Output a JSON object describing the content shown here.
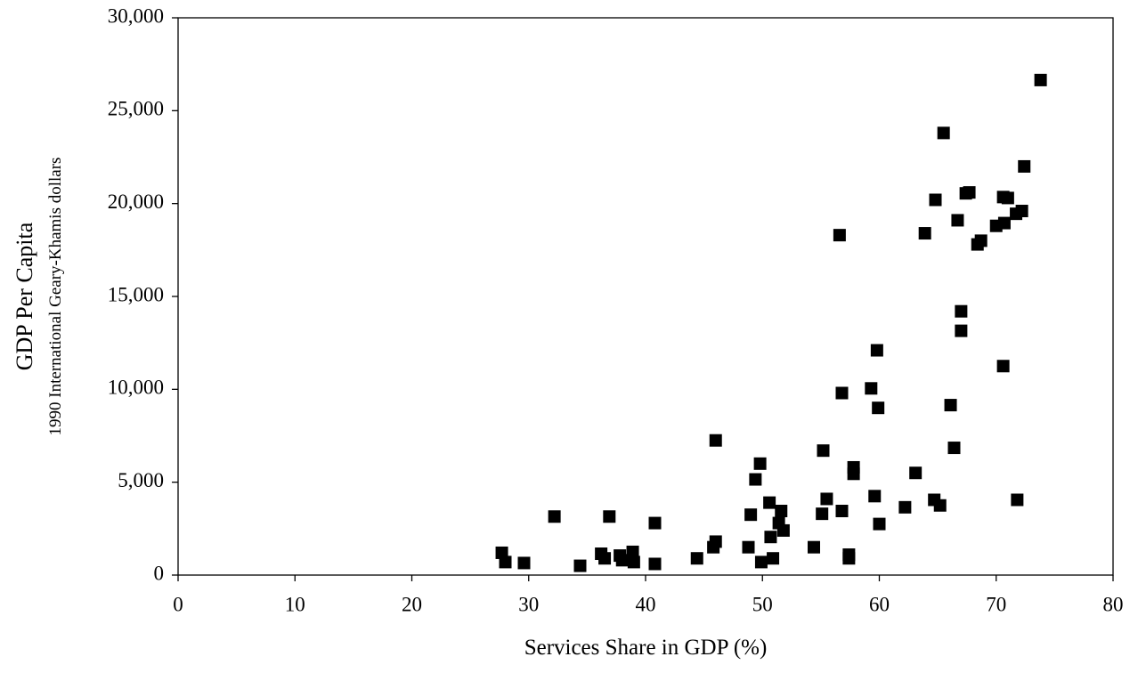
{
  "chart_data": {
    "type": "scatter",
    "xlabel": "Services Share in GDP  (%)",
    "ylabel": "GDP Per Capita",
    "ylabel_sub": "1990 International Geary-Khamis dollars",
    "xlim": [
      0,
      80
    ],
    "xticks": [
      0,
      10,
      20,
      30,
      40,
      50,
      60,
      70,
      80
    ],
    "ylim": [
      0,
      30000
    ],
    "yticks": [
      0,
      {
        "value": 5000,
        "label": "5,000"
      },
      {
        "value": 10000,
        "label": "10,000"
      },
      {
        "value": 15000,
        "label": "15,000"
      },
      {
        "value": 20000,
        "label": "20,000"
      },
      {
        "value": 25000,
        "label": "25,000"
      },
      {
        "value": 30000,
        "label": "30,000"
      }
    ],
    "color": "#000000",
    "x": [
      27.7,
      28.0,
      29.6,
      32.2,
      34.4,
      36.2,
      36.5,
      36.9,
      37.8,
      38.0,
      38.9,
      39.0,
      40.8,
      40.8,
      44.4,
      45.8,
      46.0,
      46.0,
      48.8,
      49.0,
      49.4,
      49.8,
      49.9,
      50.6,
      50.7,
      50.9,
      51.4,
      51.6,
      51.8,
      54.4,
      55.1,
      55.2,
      55.5,
      56.8,
      56.8,
      56.6,
      57.4,
      57.4,
      57.8,
      57.8,
      59.3,
      59.6,
      59.8,
      59.9,
      60.0,
      62.2,
      63.1,
      63.9,
      64.7,
      64.8,
      65.2,
      65.5,
      66.1,
      66.4,
      66.7,
      67.0,
      67.0,
      67.4,
      67.7,
      68.4,
      68.7,
      70.0,
      70.6,
      70.7,
      70.6,
      71.0,
      71.7,
      71.8,
      72.2,
      72.4,
      73.8
    ],
    "y": [
      1200,
      700,
      650,
      3150,
      500,
      1150,
      900,
      3150,
      1050,
      800,
      1250,
      700,
      2800,
      600,
      900,
      1500,
      1800,
      7250,
      1500,
      3250,
      5150,
      6000,
      700,
      3900,
      2050,
      900,
      2800,
      3450,
      2400,
      1500,
      3300,
      6700,
      4100,
      3450,
      9800,
      18300,
      1100,
      900,
      5800,
      5450,
      10050,
      4250,
      12100,
      9000,
      2750,
      3650,
      5500,
      18400,
      4050,
      20200,
      3750,
      23800,
      9150,
      6850,
      19100,
      14200,
      13150,
      20550,
      20600,
      17800,
      18000,
      18800,
      20350,
      18950,
      11250,
      20300,
      19450,
      4050,
      19600,
      22000,
      26650
    ]
  }
}
